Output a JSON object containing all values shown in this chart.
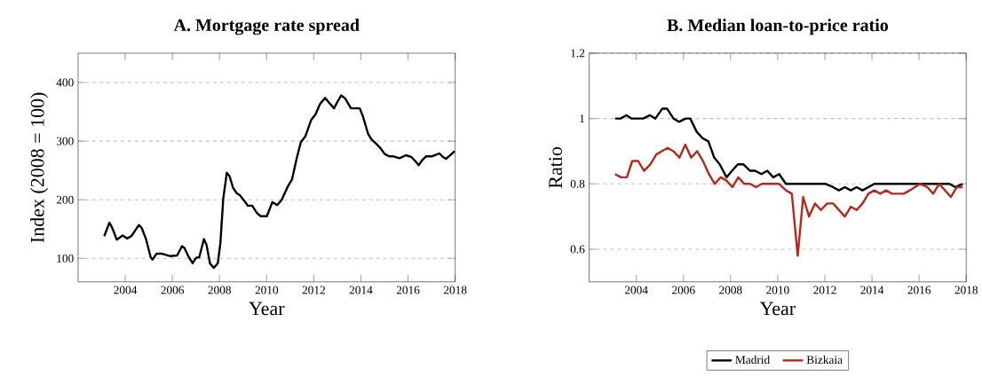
{
  "chart_data": [
    {
      "type": "line",
      "title": "A. Mortgage rate spread",
      "xlabel": "Year",
      "ylabel": "Index (2008 = 100)",
      "xlim": [
        2002,
        2018
      ],
      "ylim": [
        60,
        450
      ],
      "xticks": [
        2004,
        2006,
        2008,
        2010,
        2012,
        2014,
        2016,
        2018
      ],
      "yticks": [
        100,
        200,
        300,
        400
      ],
      "grid": "y",
      "series": [
        {
          "color": "#000000",
          "x": [
            2003.11,
            2003.33,
            2003.45,
            2003.64,
            2003.89,
            2004.08,
            2004.26,
            2004.58,
            2004.7,
            2004.89,
            2005.08,
            2005.16,
            2005.33,
            2005.58,
            2005.89,
            2006.2,
            2006.41,
            2006.51,
            2006.7,
            2006.86,
            2007.01,
            2007.14,
            2007.34,
            2007.45,
            2007.6,
            2007.76,
            2007.93,
            2008.04,
            2008.16,
            2008.31,
            2008.43,
            2008.58,
            2008.74,
            2008.86,
            2009.04,
            2009.2,
            2009.39,
            2009.58,
            2009.74,
            2010.01,
            2010.24,
            2010.45,
            2010.64,
            2010.89,
            2011.08,
            2011.26,
            2011.45,
            2011.64,
            2011.89,
            2012.08,
            2012.26,
            2012.48,
            2012.64,
            2012.86,
            2012.99,
            2013.16,
            2013.33,
            2013.58,
            2013.76,
            2013.95,
            2014.08,
            2014.3,
            2014.45,
            2014.64,
            2014.83,
            2015.01,
            2015.2,
            2015.39,
            2015.64,
            2015.91,
            2016.14,
            2016.33,
            2016.45,
            2016.61,
            2016.76,
            2016.99,
            2017.14,
            2017.33,
            2017.48,
            2017.61,
            2017.76,
            2017.98
          ],
          "values": [
            138,
            161,
            152,
            132,
            139,
            134,
            138,
            157,
            152,
            132,
            102,
            98,
            108,
            108,
            104,
            105,
            121,
            118,
            102,
            92,
            101,
            102,
            133,
            123,
            91,
            84,
            92,
            127,
            202,
            246,
            240,
            220,
            211,
            208,
            199,
            190,
            190,
            178,
            172,
            172,
            196,
            191,
            200,
            222,
            235,
            268,
            298,
            308,
            336,
            346,
            363,
            374,
            366,
            356,
            366,
            378,
            373,
            356,
            356,
            356,
            343,
            313,
            303,
            296,
            288,
            278,
            274,
            274,
            271,
            276,
            273,
            265,
            259,
            268,
            274,
            274,
            276,
            279,
            273,
            270,
            275,
            283
          ]
        }
      ]
    },
    {
      "type": "line",
      "title": "B. Median loan-to-price ratio",
      "xlabel": "Year",
      "ylabel": "Ratio",
      "xlim": [
        2002,
        2018
      ],
      "ylim": [
        0.5,
        1.2
      ],
      "xticks": [
        2004,
        2006,
        2008,
        2010,
        2012,
        2014,
        2016,
        2018
      ],
      "yticks": [
        0.6,
        0.8,
        1,
        1.2
      ],
      "grid": "y",
      "legend": "bottom",
      "series": [
        {
          "name": "Madrid",
          "color": "#000000",
          "x": [
            2003.1,
            2003.33,
            2003.58,
            2003.79,
            2004.29,
            2004.58,
            2004.81,
            2005.1,
            2005.31,
            2005.58,
            2005.81,
            2006.1,
            2006.29,
            2006.56,
            2006.81,
            2007.06,
            2007.31,
            2007.54,
            2007.83,
            2008.06,
            2008.31,
            2008.54,
            2008.83,
            2009.04,
            2009.31,
            2009.56,
            2009.81,
            2010.06,
            2010.35,
            2010.66,
            2011.29,
            2012.04,
            2012.35,
            2012.6,
            2012.85,
            2013.1,
            2013.35,
            2013.6,
            2013.85,
            2014.1,
            2014.35,
            2015.04,
            2016.04,
            2016.54,
            2017.29,
            2017.54,
            2017.85
          ],
          "values": [
            1.0,
            1.0,
            1.01,
            1.0,
            1.0,
            1.01,
            1.0,
            1.03,
            1.03,
            1.0,
            0.99,
            1.0,
            1.0,
            0.96,
            0.94,
            0.93,
            0.88,
            0.86,
            0.82,
            0.84,
            0.86,
            0.86,
            0.84,
            0.84,
            0.83,
            0.84,
            0.82,
            0.83,
            0.8,
            0.8,
            0.8,
            0.8,
            0.79,
            0.78,
            0.79,
            0.78,
            0.79,
            0.78,
            0.79,
            0.8,
            0.8,
            0.8,
            0.8,
            0.8,
            0.8,
            0.79,
            0.8
          ]
        },
        {
          "name": "Bizkaia",
          "color": "#b5281c",
          "x": [
            2003.1,
            2003.35,
            2003.6,
            2003.83,
            2004.08,
            2004.33,
            2004.6,
            2004.85,
            2005.08,
            2005.33,
            2005.58,
            2005.83,
            2006.08,
            2006.33,
            2006.58,
            2006.83,
            2007.08,
            2007.33,
            2007.58,
            2007.83,
            2008.08,
            2008.33,
            2008.58,
            2008.83,
            2009.08,
            2009.33,
            2010.06,
            2010.35,
            2010.6,
            2010.85,
            2011.08,
            2011.33,
            2011.58,
            2011.83,
            2012.1,
            2012.35,
            2012.85,
            2013.1,
            2013.35,
            2013.6,
            2013.85,
            2014.1,
            2014.35,
            2014.6,
            2014.85,
            2015.35,
            2015.6,
            2016.04,
            2016.35,
            2016.6,
            2016.85,
            2017.1,
            2017.35,
            2017.6,
            2017.85
          ],
          "values": [
            0.83,
            0.82,
            0.82,
            0.87,
            0.87,
            0.84,
            0.86,
            0.89,
            0.9,
            0.91,
            0.9,
            0.88,
            0.92,
            0.88,
            0.9,
            0.87,
            0.83,
            0.8,
            0.82,
            0.81,
            0.79,
            0.82,
            0.8,
            0.8,
            0.79,
            0.8,
            0.8,
            0.78,
            0.77,
            0.58,
            0.76,
            0.7,
            0.74,
            0.72,
            0.74,
            0.74,
            0.7,
            0.73,
            0.72,
            0.74,
            0.77,
            0.78,
            0.77,
            0.78,
            0.77,
            0.77,
            0.78,
            0.8,
            0.79,
            0.77,
            0.8,
            0.78,
            0.76,
            0.79,
            0.79
          ]
        }
      ]
    }
  ]
}
